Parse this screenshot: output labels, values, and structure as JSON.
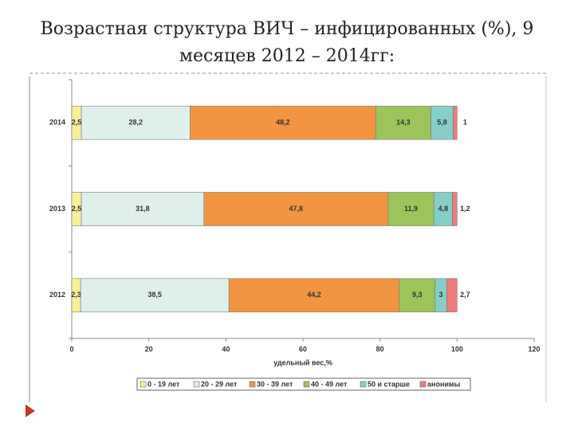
{
  "chart_data": {
    "type": "stacked-barh",
    "title": "Возрастная структура ВИЧ – инфицированных (%), 9 месяцев 2012 – 2014гг:",
    "xlabel": "удельный вес,%",
    "categories": [
      "2014",
      "2013",
      "2012"
    ],
    "series": [
      {
        "name": "0 - 19 лет",
        "color": "#f6f09a",
        "values": [
          2.5,
          2.5,
          2.3
        ],
        "value_labels": [
          "2,5",
          "2,5",
          "2,3"
        ]
      },
      {
        "name": "20 - 29 лет",
        "color": "#dff0ea",
        "values": [
          28.2,
          31.8,
          38.5
        ],
        "value_labels": [
          "28,2",
          "31,8",
          "38,5"
        ]
      },
      {
        "name": "30 - 39 лет",
        "color": "#f39441",
        "values": [
          48.2,
          47.8,
          44.2
        ],
        "value_labels": [
          "48,2",
          "47,8",
          "44,2"
        ]
      },
      {
        "name": "40 - 49 лет",
        "color": "#9cc45a",
        "values": [
          14.3,
          11.9,
          9.3
        ],
        "value_labels": [
          "14,3",
          "11,9",
          "9,3"
        ]
      },
      {
        "name": "50  и старше",
        "color": "#86cfc8",
        "values": [
          5.8,
          4.8,
          3
        ],
        "value_labels": [
          "5,8",
          "4,8",
          "3"
        ]
      },
      {
        "name": "анонимы",
        "color": "#ef7b7b",
        "values": [
          1,
          1.2,
          2.7
        ],
        "value_labels": [
          "1",
          "1,2",
          "2,7"
        ]
      }
    ],
    "xlim": [
      0,
      120
    ],
    "xticks": [
      0,
      20,
      40,
      60,
      80,
      100,
      120
    ]
  }
}
